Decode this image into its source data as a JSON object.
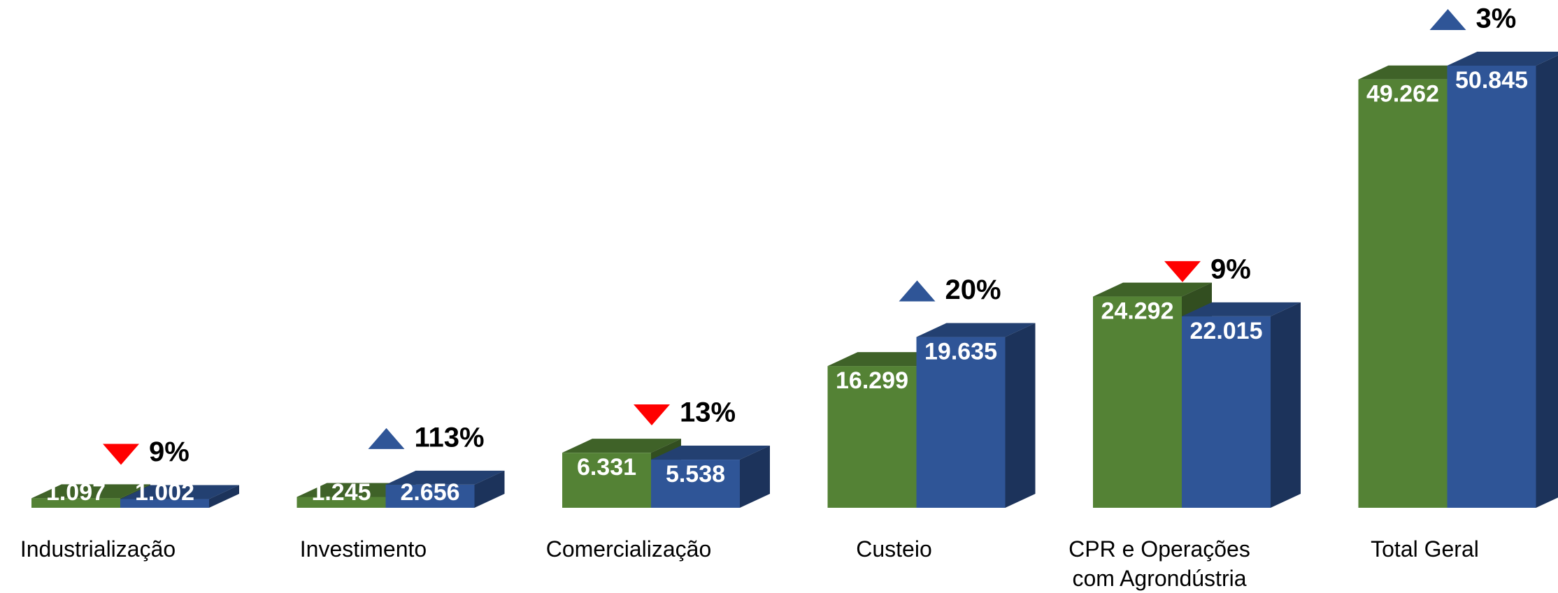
{
  "chart_data": {
    "type": "bar3d",
    "categories": [
      "Industrialização",
      "Investimento",
      "Comercialização",
      "Custeio",
      "CPR e Operações\ncom Agrondústria",
      "Total Geral"
    ],
    "series": [
      {
        "color": "#548235",
        "values": [
          1097,
          1245,
          6331,
          16299,
          24292,
          49262
        ],
        "value_labels": [
          "1.097",
          "1.245",
          "6.331",
          "16.299",
          "24.292",
          "49.262"
        ]
      },
      {
        "color": "#2f5597",
        "values": [
          1002,
          2656,
          5538,
          19635,
          22015,
          50845
        ],
        "value_labels": [
          "1.002",
          "2.656",
          "5.538",
          "19.635",
          "22.015",
          "50.845"
        ]
      }
    ],
    "annotations": [
      {
        "label": "9%",
        "direction": "down"
      },
      {
        "label": "113%",
        "direction": "up"
      },
      {
        "label": "13%",
        "direction": "down"
      },
      {
        "label": "20%",
        "direction": "up"
      },
      {
        "label": "9%",
        "direction": "down"
      },
      {
        "label": "3%",
        "direction": "up"
      }
    ],
    "annotation_colors": {
      "up": "#2f5597",
      "down": "#ff0000"
    }
  }
}
